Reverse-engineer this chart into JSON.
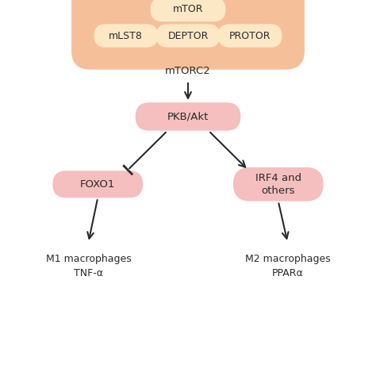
{
  "bg_color": "#ffffff",
  "mtorc2_box_color": "#f5c099",
  "mtorc2_inner_box_color": "#fde8c5",
  "pink_box_fill": "#f4bfbe",
  "text_color": "#2a2a2a",
  "arrow_color": "#2a2a2a",
  "mtor_label": "mTOR",
  "mlst8_label": "mLST8",
  "deptor_label": "DEPTOR",
  "protor_label": "PROTOR",
  "mtorc2_label": "mTORC2",
  "pkbakt_label": "PKB/Akt",
  "foxo1_label": "FOXO1",
  "irf4_label": "IRF4 and\nothers",
  "m1_label": "M1 macrophages\nTNF-α",
  "m2_label": "M2 macrophages\nPPARα"
}
